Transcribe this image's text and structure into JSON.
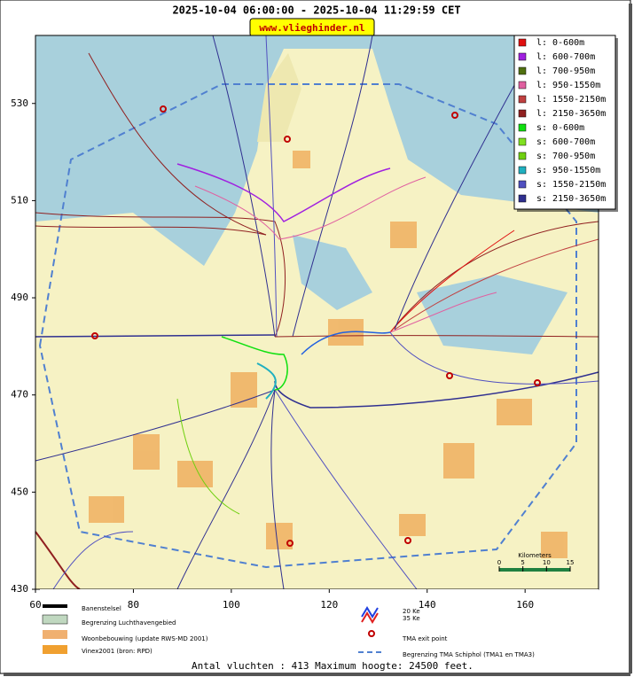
{
  "header": {
    "title": "2025-10-04 06:00:00 - 2025-10-04 11:29:59 CET",
    "badge": "www.vlieghinder.nl"
  },
  "map": {
    "xlim": [
      60,
      175
    ],
    "ylim": [
      430,
      544
    ],
    "xticks": [
      60,
      80,
      100,
      120,
      140,
      160
    ],
    "yticks": [
      430,
      450,
      470,
      490,
      510,
      530
    ]
  },
  "legend": [
    {
      "label": "l: 0-600m",
      "color": "#e01010"
    },
    {
      "label": "l: 600-700m",
      "color": "#a020e0"
    },
    {
      "label": "l: 700-950m",
      "color": "#507010"
    },
    {
      "label": "l: 950-1550m",
      "color": "#e060a0"
    },
    {
      "label": "l: 1550-2150m",
      "color": "#c04040"
    },
    {
      "label": "l: 2150-3650m",
      "color": "#902020"
    },
    {
      "label": "s: 0-600m",
      "color": "#10e010"
    },
    {
      "label": "s: 600-700m",
      "color": "#80e020"
    },
    {
      "label": "s: 700-950m",
      "color": "#70d010"
    },
    {
      "label": "s: 950-1550m",
      "color": "#20b0c0"
    },
    {
      "label": "s: 1550-2150m",
      "color": "#5050c0"
    },
    {
      "label": "s: 2150-3650m",
      "color": "#303090"
    }
  ],
  "bottom_legend": {
    "runways": "Banenstelsel",
    "airport_boundary": "Begrenzing Luchthavengebied",
    "housing": "Woonbebouwing (update RWS-MD 2001)",
    "vinex": "Vinex2001 (bron: RPD)",
    "ke20": "20 Ke",
    "ke35": "35 Ke",
    "tma_exit": "TMA exit point",
    "tma_boundary": "Begrenzing TMA Schiphol  (TMA1 en TMA3)"
  },
  "scale": {
    "label": "Kilometers",
    "ticks": [
      0,
      5,
      10,
      15
    ]
  },
  "footer": "Antal vluchten : 413 Maximum hoogte: 24500 feet."
}
